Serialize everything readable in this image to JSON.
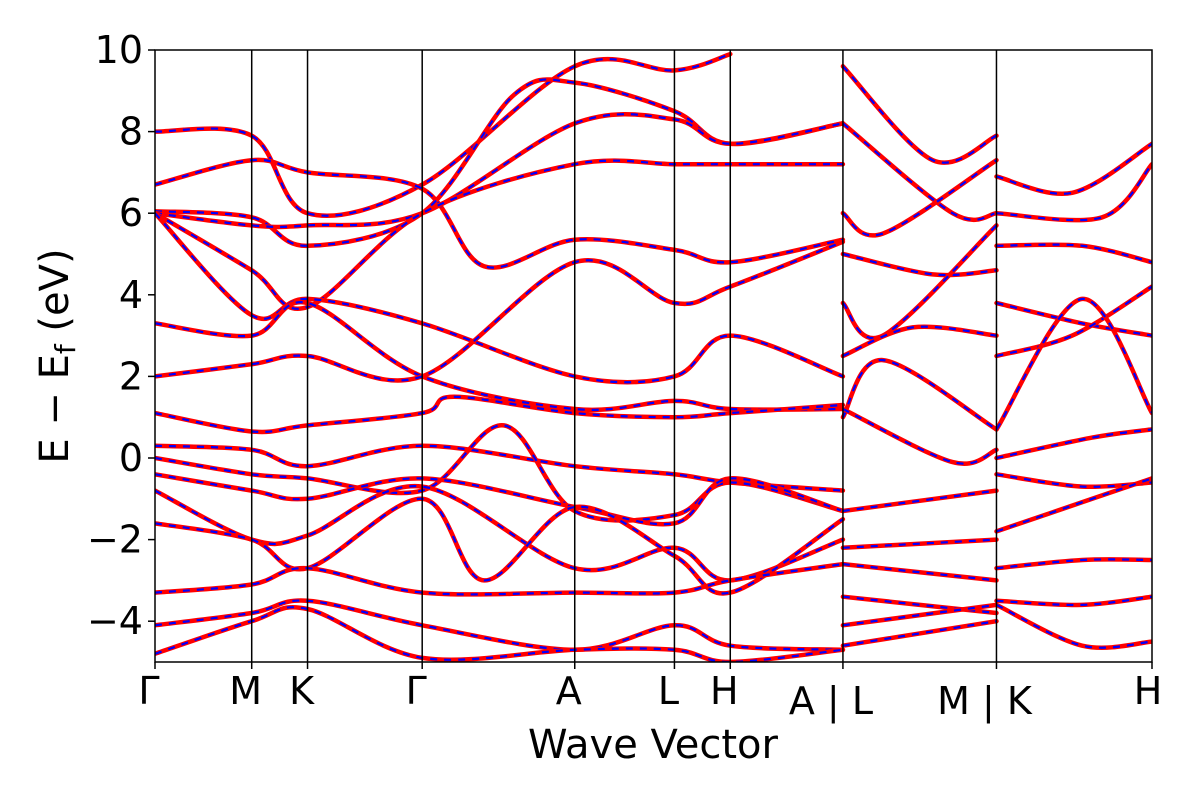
{
  "chart_data": {
    "type": "line",
    "xlabel": "Wave Vector",
    "ylabel": {
      "main": "E − E",
      "sub": "f",
      "unit": " (eV)"
    },
    "ylim": [
      -5,
      10
    ],
    "yticks": [
      -4,
      -2,
      0,
      2,
      4,
      6,
      8,
      10
    ],
    "ytick_labels": [
      "−4",
      "−2",
      "0",
      "2",
      "4",
      "6",
      "8",
      "10"
    ],
    "xlim": [
      0,
      10
    ],
    "kpoints": [
      {
        "x": 0.0,
        "label": "Γ"
      },
      {
        "x": 0.97,
        "label": "M"
      },
      {
        "x": 1.53,
        "label": "K"
      },
      {
        "x": 2.68,
        "label": "Γ"
      },
      {
        "x": 4.21,
        "label": "A"
      },
      {
        "x": 5.21,
        "label": "L"
      },
      {
        "x": 5.77,
        "label": "H"
      },
      {
        "x": 6.9,
        "label": "A | L"
      },
      {
        "x": 8.44,
        "label": "M | K"
      },
      {
        "x": 10.0,
        "label": "H"
      }
    ],
    "grid": false,
    "colors": {
      "dft": "#ff0000",
      "fit": "#0000ff",
      "frame": "#000000"
    },
    "series": [
      {
        "style": "solid",
        "color": "#ff0000",
        "values": [
          [
            0,
            8.0
          ],
          [
            0.97,
            7.9
          ],
          [
            1.53,
            6.0
          ],
          [
            2.68,
            6.7
          ],
          [
            4.21,
            9.6
          ],
          [
            5.21,
            9.5
          ],
          [
            5.77,
            9.9
          ]
        ]
      },
      {
        "style": "solid",
        "color": "#ff0000",
        "values": [
          [
            0,
            6.7
          ],
          [
            0.97,
            7.3
          ],
          [
            1.53,
            7.0
          ],
          [
            2.68,
            6.6
          ],
          [
            3.3,
            4.7
          ],
          [
            4.21,
            5.35
          ],
          [
            5.21,
            5.1
          ],
          [
            5.77,
            4.8
          ],
          [
            6.9,
            5.35
          ]
        ]
      },
      {
        "style": "solid",
        "color": "#ff0000",
        "values": [
          [
            0,
            6.05
          ],
          [
            0.97,
            5.9
          ],
          [
            1.53,
            5.2
          ],
          [
            2.68,
            6.0
          ],
          [
            3.6,
            8.9
          ],
          [
            4.21,
            9.2
          ],
          [
            5.21,
            8.5
          ],
          [
            5.77,
            7.7
          ],
          [
            6.9,
            8.2
          ]
        ]
      },
      {
        "style": "solid",
        "color": "#ff0000",
        "values": [
          [
            0,
            6.0
          ],
          [
            0.97,
            5.7
          ],
          [
            1.53,
            5.7
          ],
          [
            2.68,
            6.0
          ],
          [
            4.21,
            8.2
          ],
          [
            5.21,
            8.3
          ],
          [
            5.77,
            7.7
          ],
          [
            6.9,
            8.2
          ]
        ]
      },
      {
        "style": "solid",
        "color": "#ff0000",
        "values": [
          [
            0,
            6.0
          ],
          [
            0.97,
            4.6
          ],
          [
            1.53,
            3.7
          ],
          [
            2.68,
            6.0
          ],
          [
            4.21,
            7.2
          ],
          [
            5.21,
            7.2
          ],
          [
            5.77,
            7.2
          ],
          [
            6.9,
            7.2
          ]
        ]
      },
      {
        "style": "solid",
        "color": "#ff0000",
        "values": [
          [
            0,
            6.0
          ],
          [
            0.97,
            3.5
          ],
          [
            1.53,
            3.9
          ],
          [
            2.68,
            3.3
          ],
          [
            4.21,
            2.0
          ],
          [
            5.21,
            2.0
          ],
          [
            5.77,
            3.0
          ],
          [
            6.9,
            2.0
          ]
        ]
      },
      {
        "style": "solid",
        "color": "#ff0000",
        "values": [
          [
            0,
            3.3
          ],
          [
            0.97,
            3.0
          ],
          [
            1.53,
            3.8
          ],
          [
            2.68,
            2.0
          ],
          [
            4.21,
            1.2
          ],
          [
            5.21,
            1.4
          ],
          [
            5.77,
            1.2
          ],
          [
            6.9,
            1.2
          ]
        ]
      },
      {
        "style": "solid",
        "color": "#ff0000",
        "values": [
          [
            0,
            2.0
          ],
          [
            0.97,
            2.3
          ],
          [
            1.53,
            2.5
          ],
          [
            2.68,
            2.0
          ],
          [
            4.21,
            4.8
          ],
          [
            5.21,
            3.8
          ],
          [
            5.77,
            4.2
          ],
          [
            6.9,
            5.3
          ]
        ]
      },
      {
        "style": "solid",
        "color": "#ff0000",
        "values": [
          [
            0,
            1.1
          ],
          [
            0.97,
            0.65
          ],
          [
            1.53,
            0.8
          ],
          [
            2.68,
            1.1
          ],
          [
            3.0,
            1.5
          ],
          [
            4.21,
            1.1
          ],
          [
            5.21,
            1.0
          ],
          [
            5.77,
            1.1
          ],
          [
            6.9,
            1.3
          ]
        ]
      },
      {
        "style": "solid",
        "color": "#ff0000",
        "values": [
          [
            0,
            0.3
          ],
          [
            0.97,
            0.2
          ],
          [
            1.53,
            -0.2
          ],
          [
            2.68,
            0.3
          ],
          [
            4.21,
            -0.2
          ],
          [
            5.21,
            -0.4
          ],
          [
            5.77,
            -0.6
          ],
          [
            6.9,
            -0.8
          ]
        ]
      },
      {
        "style": "solid",
        "color": "#ff0000",
        "values": [
          [
            0,
            0.0
          ],
          [
            0.97,
            -0.4
          ],
          [
            1.53,
            -0.5
          ],
          [
            2.68,
            -0.8
          ],
          [
            3.5,
            0.8
          ],
          [
            4.21,
            -1.3
          ],
          [
            5.21,
            -1.4
          ],
          [
            5.77,
            -0.6
          ],
          [
            6.9,
            -1.3
          ]
        ]
      },
      {
        "style": "solid",
        "color": "#ff0000",
        "values": [
          [
            0,
            -0.4
          ],
          [
            0.97,
            -0.8
          ],
          [
            1.53,
            -1.0
          ],
          [
            2.68,
            -0.5
          ],
          [
            4.21,
            -1.2
          ],
          [
            5.21,
            -1.6
          ],
          [
            5.77,
            -0.5
          ],
          [
            6.9,
            -1.3
          ]
        ]
      },
      {
        "style": "solid",
        "color": "#ff0000",
        "values": [
          [
            0,
            -0.8
          ],
          [
            0.97,
            -2.0
          ],
          [
            1.53,
            -1.9
          ],
          [
            2.68,
            -0.7
          ],
          [
            4.21,
            -2.7
          ],
          [
            5.21,
            -2.2
          ],
          [
            5.77,
            -3.0
          ],
          [
            6.9,
            -2.0
          ]
        ]
      },
      {
        "style": "solid",
        "color": "#ff0000",
        "values": [
          [
            0,
            -1.6
          ],
          [
            0.97,
            -2.0
          ],
          [
            1.53,
            -2.7
          ],
          [
            2.68,
            -1.0
          ],
          [
            3.3,
            -3.0
          ],
          [
            4.21,
            -1.2
          ],
          [
            5.21,
            -2.4
          ],
          [
            5.77,
            -3.3
          ],
          [
            6.9,
            -1.5
          ]
        ]
      },
      {
        "style": "solid",
        "color": "#ff0000",
        "values": [
          [
            0,
            -3.3
          ],
          [
            0.97,
            -3.1
          ],
          [
            1.53,
            -2.7
          ],
          [
            2.68,
            -3.3
          ],
          [
            4.21,
            -3.3
          ],
          [
            5.21,
            -3.3
          ],
          [
            5.77,
            -3.0
          ],
          [
            6.9,
            -2.6
          ]
        ]
      },
      {
        "style": "solid",
        "color": "#ff0000",
        "values": [
          [
            0,
            -4.1
          ],
          [
            0.97,
            -3.8
          ],
          [
            1.53,
            -3.5
          ],
          [
            2.68,
            -4.1
          ],
          [
            4.21,
            -4.7
          ],
          [
            5.21,
            -4.1
          ],
          [
            5.77,
            -4.6
          ],
          [
            6.9,
            -4.7
          ]
        ]
      },
      {
        "style": "solid",
        "color": "#ff0000",
        "values": [
          [
            0,
            -4.8
          ],
          [
            0.97,
            -4.0
          ],
          [
            1.53,
            -3.7
          ],
          [
            2.68,
            -4.9
          ],
          [
            4.21,
            -4.7
          ],
          [
            5.21,
            -4.7
          ],
          [
            5.77,
            -5.0
          ],
          [
            6.9,
            -4.7
          ]
        ]
      },
      {
        "style": "solid",
        "color": "#ff0000",
        "values": [
          [
            6.9,
            9.6
          ],
          [
            7.8,
            7.3
          ],
          [
            8.44,
            7.9
          ]
        ]
      },
      {
        "style": "solid",
        "color": "#ff0000",
        "values": [
          [
            6.9,
            8.2
          ],
          [
            8.0,
            6.0
          ],
          [
            8.44,
            6.0
          ]
        ]
      },
      {
        "style": "solid",
        "color": "#ff0000",
        "values": [
          [
            6.9,
            6.0
          ],
          [
            7.3,
            5.5
          ],
          [
            8.44,
            7.3
          ]
        ]
      },
      {
        "style": "solid",
        "color": "#ff0000",
        "values": [
          [
            6.9,
            5.0
          ],
          [
            7.8,
            4.5
          ],
          [
            8.44,
            4.6
          ]
        ]
      },
      {
        "style": "solid",
        "color": "#ff0000",
        "values": [
          [
            6.9,
            3.8
          ],
          [
            7.3,
            3.0
          ],
          [
            8.44,
            5.7
          ]
        ]
      },
      {
        "style": "solid",
        "color": "#ff0000",
        "values": [
          [
            6.9,
            2.5
          ],
          [
            7.6,
            3.2
          ],
          [
            8.44,
            3.0
          ]
        ]
      },
      {
        "style": "solid",
        "color": "#ff0000",
        "values": [
          [
            6.9,
            1.0
          ],
          [
            7.3,
            2.4
          ],
          [
            8.44,
            0.7
          ]
        ]
      },
      {
        "style": "solid",
        "color": "#ff0000",
        "values": [
          [
            6.9,
            1.2
          ],
          [
            8.0,
            -0.1
          ],
          [
            8.44,
            0.2
          ]
        ]
      },
      {
        "style": "solid",
        "color": "#ff0000",
        "values": [
          [
            6.9,
            -1.3
          ],
          [
            8.44,
            -0.8
          ]
        ]
      },
      {
        "style": "solid",
        "color": "#ff0000",
        "values": [
          [
            6.9,
            -2.2
          ],
          [
            8.44,
            -2.0
          ]
        ]
      },
      {
        "style": "solid",
        "color": "#ff0000",
        "values": [
          [
            6.9,
            -2.6
          ],
          [
            8.44,
            -3.0
          ]
        ]
      },
      {
        "style": "solid",
        "color": "#ff0000",
        "values": [
          [
            6.9,
            -3.4
          ],
          [
            8.44,
            -3.8
          ]
        ]
      },
      {
        "style": "solid",
        "color": "#ff0000",
        "values": [
          [
            6.9,
            -4.1
          ],
          [
            8.44,
            -3.6
          ]
        ]
      },
      {
        "style": "solid",
        "color": "#ff0000",
        "values": [
          [
            6.9,
            -4.6
          ],
          [
            8.44,
            -4.0
          ]
        ]
      },
      {
        "style": "solid",
        "color": "#ff0000",
        "values": [
          [
            8.44,
            6.9
          ],
          [
            9.2,
            6.5
          ],
          [
            10,
            7.7
          ]
        ]
      },
      {
        "style": "solid",
        "color": "#ff0000",
        "values": [
          [
            8.44,
            6.0
          ],
          [
            9.5,
            5.9
          ],
          [
            10,
            7.2
          ]
        ]
      },
      {
        "style": "solid",
        "color": "#ff0000",
        "values": [
          [
            8.44,
            5.2
          ],
          [
            9.3,
            5.2
          ],
          [
            10,
            4.8
          ]
        ]
      },
      {
        "style": "solid",
        "color": "#ff0000",
        "values": [
          [
            8.44,
            3.8
          ],
          [
            9.3,
            3.3
          ],
          [
            10,
            3.0
          ]
        ]
      },
      {
        "style": "solid",
        "color": "#ff0000",
        "values": [
          [
            8.44,
            2.5
          ],
          [
            9.2,
            3.0
          ],
          [
            10,
            4.2
          ]
        ]
      },
      {
        "style": "solid",
        "color": "#ff0000",
        "values": [
          [
            8.44,
            0.7
          ],
          [
            9.3,
            3.9
          ],
          [
            10,
            1.1
          ]
        ]
      },
      {
        "style": "solid",
        "color": "#ff0000",
        "values": [
          [
            8.44,
            0.0
          ],
          [
            9.4,
            0.5
          ],
          [
            10,
            0.7
          ]
        ]
      },
      {
        "style": "solid",
        "color": "#ff0000",
        "values": [
          [
            8.44,
            -0.4
          ],
          [
            9.3,
            -0.7
          ],
          [
            10,
            -0.6
          ]
        ]
      },
      {
        "style": "solid",
        "color": "#ff0000",
        "values": [
          [
            8.44,
            -1.8
          ],
          [
            9.4,
            -1.0
          ],
          [
            10,
            -0.5
          ]
        ]
      },
      {
        "style": "solid",
        "color": "#ff0000",
        "values": [
          [
            8.44,
            -2.7
          ],
          [
            9.3,
            -2.5
          ],
          [
            10,
            -2.5
          ]
        ]
      },
      {
        "style": "solid",
        "color": "#ff0000",
        "values": [
          [
            8.44,
            -3.5
          ],
          [
            9.3,
            -3.6
          ],
          [
            10,
            -3.4
          ]
        ]
      },
      {
        "style": "solid",
        "color": "#ff0000",
        "values": [
          [
            8.44,
            -3.6
          ],
          [
            9.3,
            -4.6
          ],
          [
            10,
            -4.5
          ]
        ]
      }
    ]
  }
}
